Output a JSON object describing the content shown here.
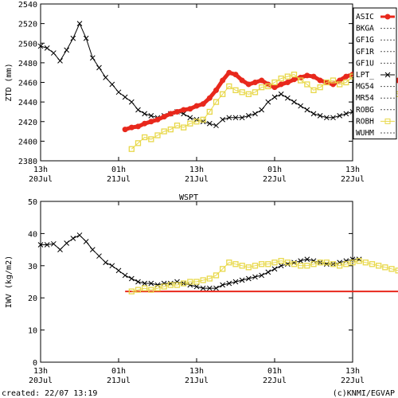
{
  "chart_data": [
    {
      "type": "line",
      "title": "",
      "ylabel": "ZTD (mm)",
      "ylim": [
        2380,
        2540
      ],
      "yticks": [
        2380,
        2400,
        2420,
        2440,
        2460,
        2480,
        2500,
        2520,
        2540
      ],
      "xlim": [
        "20Jul 13h",
        "22Jul 13h"
      ],
      "xticks": [
        {
          "top": "13h",
          "bottom": "20Jul"
        },
        {
          "top": "01h",
          "bottom": "21Jul"
        },
        {
          "top": "13h",
          "bottom": "21Jul"
        },
        {
          "top": "01h",
          "bottom": "22Jul"
        },
        {
          "top": "13h",
          "bottom": "22Jul"
        }
      ],
      "legend_position": "right",
      "legend": [
        {
          "name": "ASIC",
          "color": "#e8281c",
          "style": "thick-dot"
        },
        {
          "name": "BKGA",
          "color": "#555555",
          "style": "dotted"
        },
        {
          "name": "GF1G",
          "color": "#555555",
          "style": "dotted"
        },
        {
          "name": "GF1R",
          "color": "#555555",
          "style": "dotted"
        },
        {
          "name": "GF1U",
          "color": "#555555",
          "style": "dotted"
        },
        {
          "name": "LPT_",
          "color": "#000000",
          "style": "cross"
        },
        {
          "name": "MG54",
          "color": "#555555",
          "style": "dotted"
        },
        {
          "name": "MR54",
          "color": "#555555",
          "style": "dotted"
        },
        {
          "name": "ROBG",
          "color": "#555555",
          "style": "dotted"
        },
        {
          "name": "ROBH",
          "color": "#e8d84a",
          "style": "square"
        },
        {
          "name": "WUHM",
          "color": "#555555",
          "style": "dotted"
        }
      ],
      "series": [
        {
          "name": "LPT_",
          "x": [
            0,
            1,
            2,
            3,
            4,
            5,
            6,
            7,
            8,
            9,
            10,
            11,
            12,
            13,
            14,
            15,
            16,
            17,
            18,
            19,
            20,
            21,
            22,
            23,
            24,
            25,
            26,
            27,
            28,
            29,
            30,
            31,
            32,
            33,
            34,
            35,
            36,
            37,
            38,
            39,
            40,
            41,
            42,
            43,
            44,
            45,
            46,
            47,
            48,
            49
          ],
          "y": [
            2497,
            2495,
            2490,
            2482,
            2493,
            2505,
            2520,
            2505,
            2485,
            2475,
            2465,
            2458,
            2450,
            2445,
            2440,
            2432,
            2428,
            2426,
            2424,
            2426,
            2428,
            2430,
            2428,
            2424,
            2422,
            2420,
            2418,
            2416,
            2422,
            2424,
            2424,
            2424,
            2426,
            2428,
            2432,
            2440,
            2445,
            2448,
            2444,
            2440,
            2436,
            2432,
            2428,
            2426,
            2424,
            2424,
            2426,
            2428,
            2430,
            2432
          ]
        },
        {
          "name": "ASIC",
          "x": [
            13,
            14,
            15,
            16,
            17,
            18,
            19,
            20,
            21,
            22,
            23,
            24,
            25,
            26,
            27,
            28,
            29,
            30,
            31,
            32,
            33,
            34,
            35,
            36,
            37,
            38,
            39,
            40,
            41,
            42,
            43,
            44,
            45,
            46,
            47,
            48,
            49,
            50,
            51,
            52,
            53,
            54,
            55,
            56,
            57,
            58,
            59,
            60
          ],
          "y": [
            2412,
            2414,
            2415,
            2418,
            2420,
            2422,
            2425,
            2428,
            2430,
            2432,
            2433,
            2436,
            2438,
            2444,
            2452,
            2462,
            2470,
            2468,
            2462,
            2458,
            2460,
            2462,
            2458,
            2455,
            2458,
            2460,
            2463,
            2465,
            2467,
            2466,
            2462,
            2460,
            2458,
            2462,
            2466,
            2468,
            2470,
            2472,
            2470,
            2466,
            2462,
            2460,
            2462,
            2465,
            2468,
            2470,
            2468,
            2466
          ]
        },
        {
          "name": "ROBH",
          "x": [
            14,
            15,
            16,
            17,
            18,
            19,
            20,
            21,
            22,
            23,
            24,
            25,
            26,
            27,
            28,
            29,
            30,
            31,
            32,
            33,
            34,
            35,
            36,
            37,
            38,
            39,
            40,
            41,
            42,
            43,
            44,
            45,
            46,
            47,
            48,
            49,
            50,
            51,
            52,
            53,
            54,
            55,
            56,
            57,
            58,
            59,
            60,
            61
          ],
          "y": [
            2392,
            2398,
            2404,
            2402,
            2406,
            2410,
            2412,
            2416,
            2414,
            2418,
            2420,
            2422,
            2430,
            2440,
            2448,
            2456,
            2452,
            2450,
            2448,
            2450,
            2455,
            2456,
            2460,
            2464,
            2466,
            2468,
            2462,
            2458,
            2452,
            2455,
            2460,
            2462,
            2458,
            2460,
            2466,
            2470,
            2472,
            2468,
            2462,
            2460,
            2452,
            2448,
            2446,
            2462,
            2476,
            2480,
            2484,
            2488
          ]
        }
      ]
    },
    {
      "type": "line",
      "title": "WSPT",
      "ylabel": "IWV (kg/m2)",
      "ylim": [
        0,
        50
      ],
      "yticks": [
        0,
        10,
        20,
        30,
        40,
        50
      ],
      "xlim": [
        "20Jul 13h",
        "22Jul 13h"
      ],
      "xticks": [
        {
          "top": "13h",
          "bottom": "20Jul"
        },
        {
          "top": "01h",
          "bottom": "21Jul"
        },
        {
          "top": "13h",
          "bottom": "21Jul"
        },
        {
          "top": "01h",
          "bottom": "22Jul"
        },
        {
          "top": "13h",
          "bottom": "22Jul"
        }
      ],
      "series": [
        {
          "name": "LPT_",
          "x": [
            0,
            1,
            2,
            3,
            4,
            5,
            6,
            7,
            8,
            9,
            10,
            11,
            12,
            13,
            14,
            15,
            16,
            17,
            18,
            19,
            20,
            21,
            22,
            23,
            24,
            25,
            26,
            27,
            28,
            29,
            30,
            31,
            32,
            33,
            34,
            35,
            36,
            37,
            38,
            39,
            40,
            41,
            42,
            43,
            44,
            45,
            46,
            47,
            48,
            49
          ],
          "y": [
            36.5,
            36.5,
            36.8,
            35.0,
            37.0,
            38.5,
            39.5,
            37.5,
            35.0,
            33.0,
            31.0,
            30.0,
            28.5,
            27.0,
            26.0,
            25.0,
            24.5,
            24.5,
            24.0,
            24.5,
            24.5,
            25.0,
            24.5,
            24.0,
            23.5,
            23.0,
            23.0,
            23.0,
            24.0,
            24.5,
            25.0,
            25.5,
            26.0,
            26.5,
            27.0,
            28.0,
            29.0,
            30.0,
            30.5,
            31.0,
            31.5,
            32.0,
            31.5,
            31.0,
            30.5,
            30.5,
            31.0,
            31.5,
            32.0,
            32.0
          ]
        },
        {
          "name": "ASIC",
          "x": [
            13,
            60
          ],
          "y": [
            22.0,
            22.0
          ]
        },
        {
          "name": "ROBH",
          "x": [
            14,
            15,
            16,
            17,
            18,
            19,
            20,
            21,
            22,
            23,
            24,
            25,
            26,
            27,
            28,
            29,
            30,
            31,
            32,
            33,
            34,
            35,
            36,
            37,
            38,
            39,
            40,
            41,
            42,
            43,
            44,
            45,
            46,
            47,
            48,
            49,
            50,
            51,
            52,
            53,
            54,
            55,
            56,
            57,
            58,
            59,
            60,
            61
          ],
          "y": [
            22.0,
            22.5,
            23.0,
            22.5,
            23.0,
            23.5,
            24.0,
            24.0,
            24.5,
            25.0,
            25.0,
            25.5,
            26.0,
            27.0,
            29.0,
            31.0,
            30.5,
            30.0,
            29.5,
            30.0,
            30.5,
            30.5,
            31.0,
            31.5,
            31.0,
            30.5,
            30.0,
            30.0,
            30.5,
            31.0,
            31.0,
            30.5,
            30.0,
            30.5,
            31.0,
            31.5,
            31.0,
            30.5,
            30.0,
            29.5,
            29.0,
            28.5,
            29.0,
            30.0,
            31.0,
            32.0,
            32.5,
            27.0
          ]
        }
      ]
    }
  ],
  "footer": {
    "created": "created: 22/07 13:19",
    "credit": "(c)KNMI/EGVAP"
  },
  "colors": {
    "asic": "#e8281c",
    "robh": "#e8d84a",
    "lpt": "#000000",
    "other": "#666666"
  }
}
